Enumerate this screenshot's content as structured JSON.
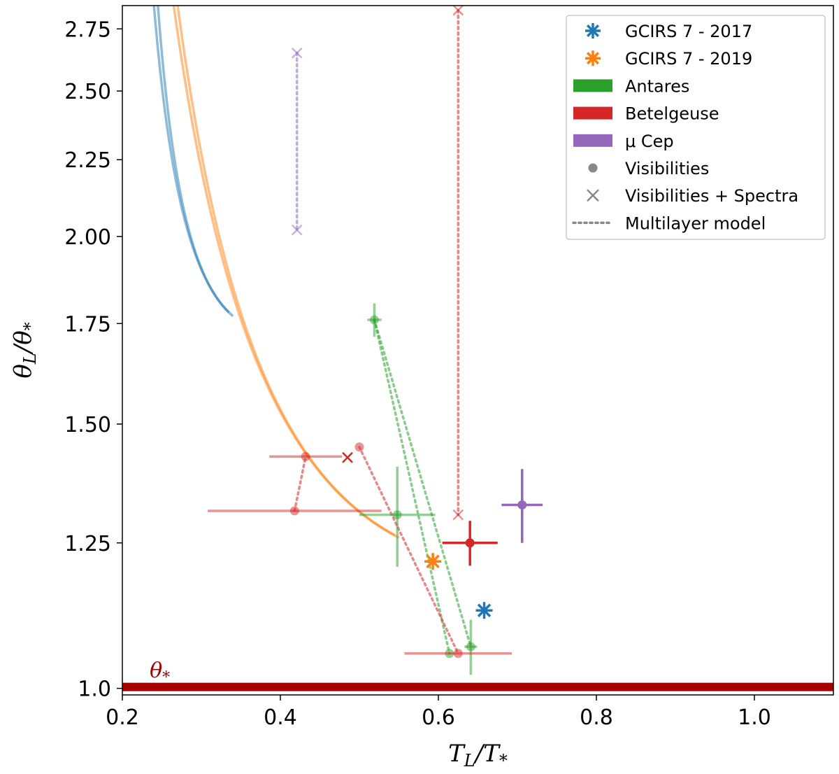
{
  "colors": {
    "blue": "#1f77b4",
    "orange": "#ff7f0e",
    "green": "#2ca02c",
    "red": "#d62728",
    "purple": "#9467bd",
    "gray": "#888888",
    "darkred": "#a50000"
  },
  "chart_data": {
    "type": "scatter",
    "title": "",
    "xlabel": "T_L/T_*",
    "ylabel": "θ_L/θ_*",
    "xlim": [
      0.2,
      1.1
    ],
    "ylim": [
      0.99,
      2.85
    ],
    "y_scale": "log",
    "grid": false,
    "legend_position": "top-right",
    "x_ticks": [
      "0.2",
      "0.4",
      "0.6",
      "0.8",
      "1.0"
    ],
    "x_tick_values": [
      0.2,
      0.4,
      0.6,
      0.8,
      1.0
    ],
    "y_ticks": [
      "1.0",
      "1.25",
      "1.50",
      "1.75",
      "2.00",
      "2.25",
      "2.50",
      "2.75"
    ],
    "y_tick_values": [
      1.0,
      1.25,
      1.5,
      1.75,
      2.0,
      2.25,
      2.5,
      2.75
    ],
    "annotation": {
      "text": "θ*",
      "label": "θ_*",
      "x": 0.27,
      "y": 1.05,
      "color": "#a50000"
    },
    "reference_line": {
      "y": 1.0,
      "color": "#a50000",
      "label": "theta-star-line"
    },
    "legend": [
      {
        "label": "GCIRS 7 - 2017",
        "marker": "star",
        "color": "#1f77b4"
      },
      {
        "label": "GCIRS 7 - 2019",
        "marker": "star",
        "color": "#ff7f0e"
      },
      {
        "label": "Antares",
        "marker": "patch",
        "color": "#2ca02c"
      },
      {
        "label": "Betelgeuse",
        "marker": "patch",
        "color": "#d62728"
      },
      {
        "label": "μ Cep",
        "marker": "patch",
        "color": "#9467bd"
      },
      {
        "label": "Visibilities",
        "marker": "dot",
        "color": "#888888"
      },
      {
        "label": "Visibilities + Spectra",
        "marker": "cross",
        "color": "#888888"
      },
      {
        "label": "Multilayer model",
        "marker": "dotted",
        "color": "#888888"
      }
    ],
    "curves": [
      {
        "name": "GCIRS 7 - 2017 curve a",
        "color": "#1f77b4",
        "x0": 0.245,
        "y0": 2.85,
        "x1": 0.335,
        "y1": 1.78
      },
      {
        "name": "GCIRS 7 - 2017 curve b",
        "color": "#1f77b4",
        "x0": 0.24,
        "y0": 2.85,
        "x1": 0.34,
        "y1": 1.77
      },
      {
        "name": "GCIRS 7 - 2019 curve a",
        "color": "#ff7f0e",
        "x0": 0.265,
        "y0": 2.85,
        "x1": 0.55,
        "y1": 1.26
      },
      {
        "name": "GCIRS 7 - 2019 curve b",
        "color": "#ff7f0e",
        "x0": 0.27,
        "y0": 2.85,
        "x1": 0.545,
        "y1": 1.265
      }
    ],
    "series": [
      {
        "name": "GCIRS 7 - 2017",
        "marker": "star",
        "color": "#1f77b4",
        "points": [
          {
            "x": 0.658,
            "y": 1.127
          }
        ]
      },
      {
        "name": "GCIRS 7 - 2019",
        "marker": "star",
        "color": "#ff7f0e",
        "points": [
          {
            "x": 0.593,
            "y": 1.215
          }
        ]
      },
      {
        "name": "Antares",
        "color": "#2ca02c",
        "points": [
          {
            "x": 0.548,
            "y": 1.305,
            "xerr": 0.048,
            "yerr": 0.1,
            "marker": "dot",
            "faded": true
          },
          {
            "x": 0.519,
            "y": 1.76,
            "xerr": 0.009,
            "yerr": 0.045,
            "marker": "dot",
            "faded": true
          },
          {
            "x": 0.641,
            "y": 1.066,
            "xerr": 0.008,
            "yerr": 0.045,
            "marker": "dot",
            "faded": true
          },
          {
            "x": 0.614,
            "y": 1.055,
            "marker": "dot",
            "faded": true
          }
        ]
      },
      {
        "name": "Betelgeuse",
        "color": "#d62728",
        "points": [
          {
            "x": 0.64,
            "y": 1.25,
            "xerr": 0.035,
            "yerr": 0.043,
            "marker": "dot",
            "faded": false
          },
          {
            "x": 0.485,
            "y": 1.425,
            "marker": "cross",
            "faded": false
          },
          {
            "x": 0.432,
            "y": 1.427,
            "xerr": 0.046,
            "marker": "dot",
            "faded": true
          },
          {
            "x": 0.418,
            "y": 1.313,
            "xerr": 0.11,
            "marker": "dot",
            "faded": true
          },
          {
            "x": 0.5,
            "y": 1.448,
            "marker": "dot",
            "faded": true
          },
          {
            "x": 0.625,
            "y": 1.055,
            "xerr": 0.068,
            "marker": "dot",
            "faded": true
          },
          {
            "x": 0.625,
            "y": 2.83,
            "marker": "cross",
            "faded": true
          },
          {
            "x": 0.625,
            "y": 1.305,
            "marker": "cross",
            "faded": true
          }
        ]
      },
      {
        "name": "μ Cep",
        "color": "#9467bd",
        "points": [
          {
            "x": 0.706,
            "y": 1.325,
            "xerr": 0.026,
            "yerr": 0.075,
            "marker": "dot",
            "faded": false
          },
          {
            "x": 0.421,
            "y": 2.65,
            "marker": "cross",
            "faded": true
          },
          {
            "x": 0.421,
            "y": 2.02,
            "marker": "cross",
            "faded": true
          }
        ]
      }
    ],
    "multilayer_lines": [
      {
        "color": "#2ca02c",
        "points": [
          [
            0.519,
            1.76
          ],
          [
            0.641,
            1.066
          ]
        ]
      },
      {
        "color": "#2ca02c",
        "points": [
          [
            0.519,
            1.76
          ],
          [
            0.614,
            1.055
          ]
        ]
      },
      {
        "color": "#d62728",
        "points": [
          [
            0.418,
            1.313
          ],
          [
            0.432,
            1.427
          ]
        ]
      },
      {
        "color": "#d62728",
        "points": [
          [
            0.5,
            1.448
          ],
          [
            0.625,
            1.055
          ]
        ]
      },
      {
        "color": "#d62728",
        "points": [
          [
            0.625,
            2.83
          ],
          [
            0.625,
            1.305
          ]
        ]
      },
      {
        "color": "#9467bd",
        "points": [
          [
            0.421,
            2.65
          ],
          [
            0.421,
            2.02
          ]
        ]
      }
    ]
  }
}
